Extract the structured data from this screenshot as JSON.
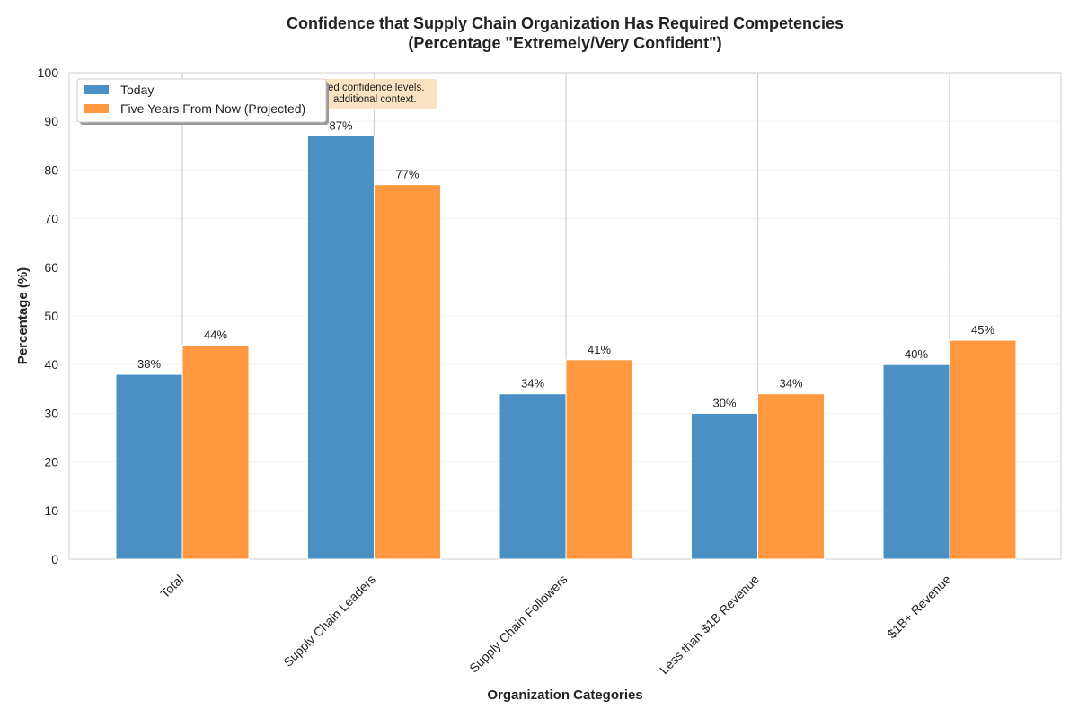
{
  "chart_data": {
    "type": "bar",
    "title": "Confidence that Supply Chain Organization Has Required Competencies",
    "subtitle": "(Percentage \"Extremely/Very Confident\")",
    "xlabel": "Organization Categories",
    "ylabel": "Percentage (%)",
    "ylim": [
      0,
      100
    ],
    "yticks": [
      "0",
      "10",
      "20",
      "30",
      "40",
      "50",
      "60",
      "70",
      "80",
      "90",
      "100"
    ],
    "grid": true,
    "legend_position": "top-left",
    "categories": [
      "Total",
      "Supply Chain Leaders",
      "Supply Chain Followers",
      "Less than $1B Revenue",
      "$1B+ Revenue"
    ],
    "series": [
      {
        "name": "Today",
        "color": "#4a90c4",
        "values": [
          38,
          87,
          34,
          30,
          40
        ],
        "labels": [
          "38%",
          "87%",
          "34%",
          "30%",
          "40%"
        ]
      },
      {
        "name": "Five Years From Now (Projected)",
        "color": "#ff983f",
        "values": [
          44,
          77,
          41,
          34,
          45
        ],
        "labels": [
          "44%",
          "77%",
          "41%",
          "34%",
          "45%"
        ]
      }
    ],
    "annotation": {
      "lines": [
        "ed confidence levels.",
        "additional context."
      ],
      "background": "#fae3c2"
    }
  }
}
